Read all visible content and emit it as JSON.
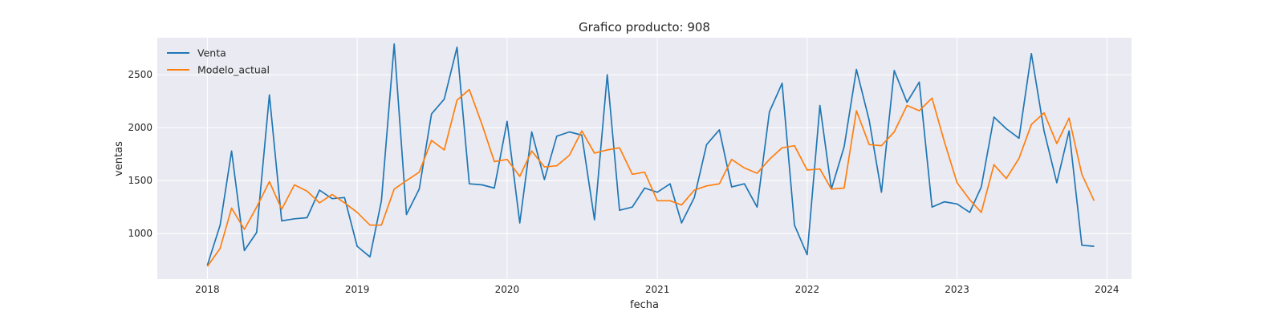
{
  "chart_data": {
    "type": "line",
    "title": "Grafico producto: 908",
    "xlabel": "fecha",
    "ylabel": "ventas",
    "x_start": "2018-01",
    "x_frequency": "monthly",
    "xlim": [
      "2017-09-01",
      "2024-03-01"
    ],
    "ylim": [
      570,
      2850
    ],
    "xticks": [
      "2018-01-01",
      "2019-01-01",
      "2020-01-01",
      "2021-01-01",
      "2022-01-01",
      "2023-01-01",
      "2024-01-01"
    ],
    "xtick_labels": [
      "2018",
      "2019",
      "2020",
      "2021",
      "2022",
      "2023",
      "2024"
    ],
    "yticks": [
      1000,
      1500,
      2000,
      2500
    ],
    "ytick_labels": [
      "1000",
      "1500",
      "2000",
      "2500"
    ],
    "grid": true,
    "legend": "upper-left",
    "background_color": "#eaeaf2",
    "series": [
      {
        "name": "Venta",
        "color": "#1f77b4",
        "values": [
          700,
          1080,
          1780,
          840,
          1010,
          2310,
          1120,
          1140,
          1150,
          1410,
          1330,
          1340,
          880,
          780,
          1310,
          2790,
          1180,
          1420,
          2130,
          2270,
          2760,
          1470,
          1460,
          1430,
          2060,
          1100,
          1960,
          1510,
          1920,
          1960,
          1930,
          1130,
          2500,
          1220,
          1250,
          1430,
          1390,
          1470,
          1100,
          1340,
          1840,
          1980,
          1440,
          1470,
          1250,
          2150,
          2420,
          1080,
          800,
          2210,
          1420,
          1820,
          2550,
          2070,
          1390,
          2540,
          2240,
          2430,
          1250,
          1300,
          1280,
          1200,
          1440,
          2100,
          1990,
          1900,
          2700,
          1970,
          1480,
          1970,
          890,
          880
        ]
      },
      {
        "name": "Modelo_actual",
        "color": "#ff7f0e",
        "values": [
          690,
          860,
          1240,
          1040,
          1250,
          1490,
          1230,
          1460,
          1400,
          1290,
          1370,
          1290,
          1200,
          1080,
          1080,
          1420,
          1500,
          1580,
          1880,
          1790,
          2260,
          2360,
          2030,
          1680,
          1700,
          1540,
          1780,
          1630,
          1640,
          1740,
          1970,
          1760,
          1790,
          1810,
          1560,
          1580,
          1310,
          1310,
          1270,
          1410,
          1450,
          1470,
          1700,
          1620,
          1570,
          1700,
          1810,
          1830,
          1600,
          1610,
          1420,
          1430,
          2160,
          1840,
          1830,
          1960,
          2210,
          2160,
          2280,
          1870,
          1480,
          1320,
          1200,
          1650,
          1520,
          1710,
          2030,
          2140,
          1850,
          2090,
          1560,
          1310
        ]
      }
    ]
  }
}
